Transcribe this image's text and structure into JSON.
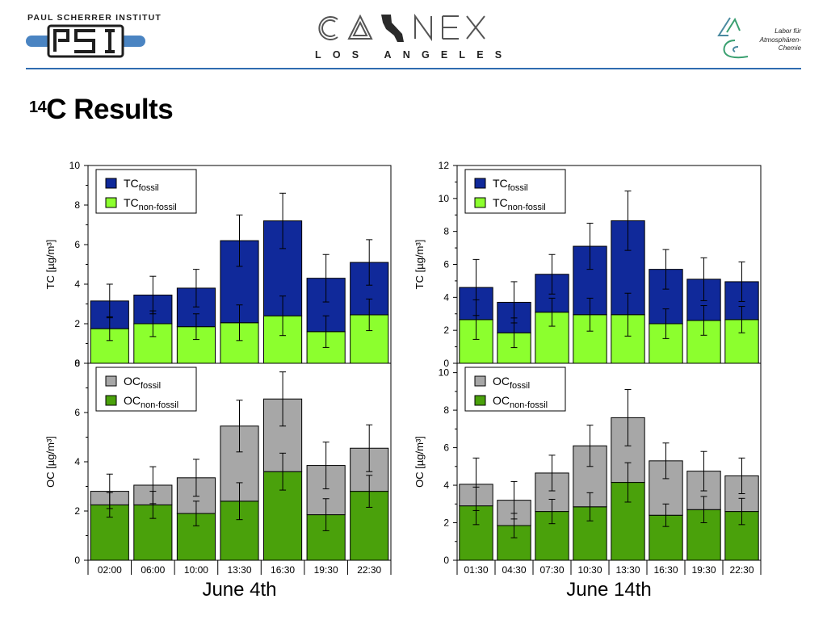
{
  "header": {
    "psi_org": "PAUL SCHERRER INSTITUT",
    "psi_logo_text": "PSI",
    "calnex_title": "CALNEX",
    "calnex_sub": "LOS ANGELES",
    "lac_lines": [
      "Labor für",
      "Atmosphären-",
      "Chemie"
    ],
    "rule_color": "#2f6cb0"
  },
  "slide": {
    "title_sup": "14",
    "title_main": "C Results"
  },
  "colors": {
    "tc_fossil": "#10299a",
    "tc_nonfossil": "#8cff2e",
    "oc_fossil": "#a7a7a7",
    "oc_nonfossil": "#4aa10b"
  },
  "chart_data": [
    {
      "type": "bar",
      "panel": "left-top",
      "stacked": true,
      "categories": [
        "02:00",
        "06:00",
        "10:00",
        "13:30",
        "16:30",
        "19:30",
        "22:30"
      ],
      "ylabel": "TC [µg/m³]",
      "ylim": [
        0,
        10
      ],
      "yticks": [
        "0",
        "2",
        "4",
        "6",
        "8",
        "10"
      ],
      "legend": [
        "TCfossil",
        "TCnon-fossil"
      ],
      "legend_position": "top-left",
      "series": [
        {
          "name": "TCnon-fossil",
          "values": [
            1.75,
            2.0,
            1.85,
            2.05,
            2.4,
            1.6,
            2.45
          ],
          "err": [
            0.6,
            0.65,
            0.65,
            0.9,
            1.0,
            0.8,
            0.8
          ]
        },
        {
          "name": "TCfossil",
          "values": [
            1.4,
            1.45,
            1.95,
            4.15,
            4.8,
            2.7,
            2.65
          ],
          "err": [
            0.85,
            0.95,
            0.95,
            1.3,
            1.4,
            1.2,
            1.15
          ]
        }
      ]
    },
    {
      "type": "bar",
      "panel": "left-bottom",
      "stacked": true,
      "categories": [
        "02:00",
        "06:00",
        "10:00",
        "13:30",
        "16:30",
        "19:30",
        "22:30"
      ],
      "xlabel": "June 4th",
      "ylabel": "OC [µg/m³]",
      "ylim": [
        0,
        8
      ],
      "yticks": [
        "0",
        "2",
        "4",
        "6",
        "8"
      ],
      "legend": [
        "OCfossil",
        "OCnon-fossil"
      ],
      "legend_position": "top-left",
      "series": [
        {
          "name": "OCnon-fossil",
          "values": [
            2.25,
            2.25,
            1.9,
            2.4,
            3.6,
            1.85,
            2.8
          ],
          "err": [
            0.5,
            0.55,
            0.5,
            0.75,
            0.75,
            0.65,
            0.65
          ]
        },
        {
          "name": "OCfossil",
          "values": [
            0.55,
            0.8,
            1.45,
            3.05,
            2.95,
            2.0,
            1.75
          ],
          "err": [
            0.7,
            0.75,
            0.75,
            1.05,
            1.1,
            0.95,
            0.95
          ]
        }
      ]
    },
    {
      "type": "bar",
      "panel": "right-top",
      "stacked": true,
      "categories": [
        "01:30",
        "04:30",
        "07:30",
        "10:30",
        "13:30",
        "16:30",
        "19:30",
        "22:30"
      ],
      "ylabel": "TC [µg/m³]",
      "ylim": [
        0,
        12
      ],
      "yticks": [
        "0",
        "2",
        "4",
        "6",
        "8",
        "10",
        "12"
      ],
      "legend": [
        "TCfossil",
        "TCnon-fossil"
      ],
      "legend_position": "top-left",
      "series": [
        {
          "name": "TCnon-fossil",
          "values": [
            2.65,
            1.85,
            3.1,
            2.95,
            2.95,
            2.4,
            2.6,
            2.65
          ],
          "err": [
            1.2,
            0.9,
            0.85,
            1.0,
            1.3,
            0.9,
            0.9,
            0.8
          ]
        },
        {
          "name": "TCfossil",
          "values": [
            1.95,
            1.85,
            2.3,
            4.15,
            5.7,
            3.3,
            2.5,
            2.3
          ],
          "err": [
            1.7,
            1.25,
            1.2,
            1.4,
            1.8,
            1.2,
            1.3,
            1.2
          ]
        }
      ]
    },
    {
      "type": "bar",
      "panel": "right-bottom",
      "stacked": true,
      "categories": [
        "01:30",
        "04:30",
        "07:30",
        "10:30",
        "13:30",
        "16:30",
        "19:30",
        "22:30"
      ],
      "xlabel": "June 14th",
      "ylabel": "OC [µg/m³]",
      "ylim": [
        0,
        10.5
      ],
      "yticks": [
        "0",
        "2",
        "4",
        "6",
        "8",
        "10"
      ],
      "legend": [
        "OCfossil",
        "OCnon-fossil"
      ],
      "legend_position": "top-left",
      "series": [
        {
          "name": "OCnon-fossil",
          "values": [
            2.9,
            1.85,
            2.6,
            2.85,
            4.15,
            2.4,
            2.7,
            2.6
          ],
          "err": [
            1.0,
            0.65,
            0.65,
            0.75,
            1.05,
            0.6,
            0.7,
            0.7
          ]
        },
        {
          "name": "OCfossil",
          "values": [
            1.15,
            1.35,
            2.05,
            3.25,
            3.45,
            2.9,
            2.05,
            1.9
          ],
          "err": [
            1.4,
            1.0,
            0.95,
            1.1,
            1.5,
            0.95,
            1.05,
            0.95
          ]
        }
      ]
    }
  ]
}
